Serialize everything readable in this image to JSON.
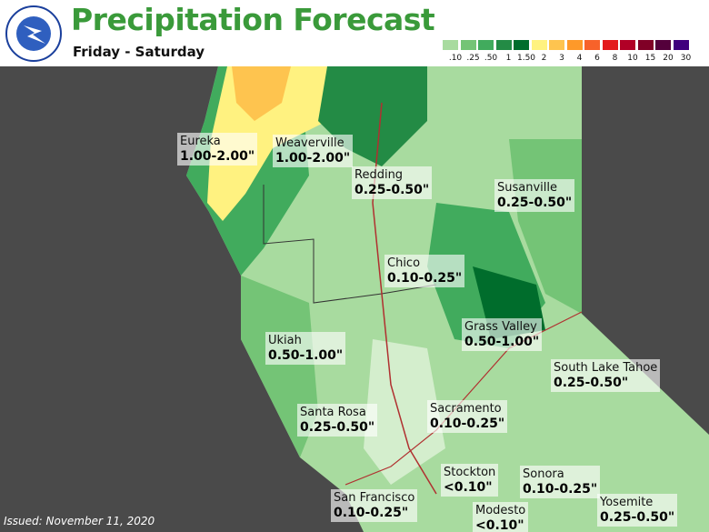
{
  "title": "Precipitation Forecast",
  "subtitle": "Friday - Saturday",
  "legend": [
    {
      "label": ".10",
      "color": "#a8db9f"
    },
    {
      "label": ".25",
      "color": "#74c476"
    },
    {
      "label": ".50",
      "color": "#41ab5d"
    },
    {
      "label": "1",
      "color": "#238b45"
    },
    {
      "label": "1.50",
      "color": "#006d2c"
    },
    {
      "label": "2",
      "color": "#fff280"
    },
    {
      "label": "3",
      "color": "#fec44f"
    },
    {
      "label": "4",
      "color": "#fe9929"
    },
    {
      "label": "6",
      "color": "#f7622a"
    },
    {
      "label": "8",
      "color": "#e31a1c"
    },
    {
      "label": "10",
      "color": "#b10026"
    },
    {
      "label": "15",
      "color": "#800026"
    },
    {
      "label": "20",
      "color": "#54003b"
    },
    {
      "label": "30",
      "color": "#3f007d"
    }
  ],
  "cities": [
    {
      "name": "Eureka",
      "range": "1.00-2.00\""
    },
    {
      "name": "Weaverville",
      "range": "1.00-2.00\""
    },
    {
      "name": "Redding",
      "range": "0.25-0.50\""
    },
    {
      "name": "Susanville",
      "range": "0.25-0.50\""
    },
    {
      "name": "Chico",
      "range": "0.10-0.25\""
    },
    {
      "name": "Grass Valley",
      "range": "0.50-1.00\""
    },
    {
      "name": "Ukiah",
      "range": "0.50-1.00\""
    },
    {
      "name": "South Lake Tahoe",
      "range": "0.25-0.50\""
    },
    {
      "name": "Santa Rosa",
      "range": "0.25-0.50\""
    },
    {
      "name": "Sacramento",
      "range": "0.10-0.25\""
    },
    {
      "name": "Stockton",
      "range": "<0.10\""
    },
    {
      "name": "Sonora",
      "range": "0.10-0.25\""
    },
    {
      "name": "San Francisco",
      "range": "0.10-0.25\""
    },
    {
      "name": "Modesto",
      "range": "<0.10\""
    },
    {
      "name": "Yosemite",
      "range": "0.25-0.50\""
    }
  ],
  "issued": "Issued: November 11, 2020"
}
